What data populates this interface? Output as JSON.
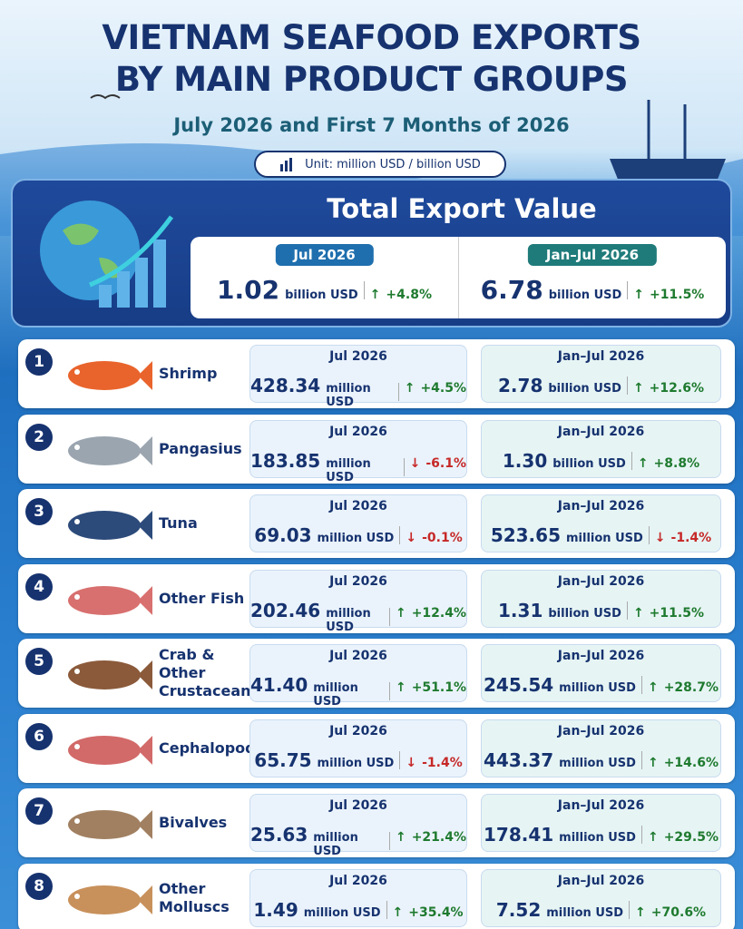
{
  "header": {
    "title_lines": [
      "VIETNAM SEAFOOD EXPORTS",
      "BY MAIN PRODUCT GROUPS"
    ],
    "subtitle": "July 2026 and First 7 Months of 2026",
    "unit": "Unit: million USD / billion USD"
  },
  "periods": [
    "Jul 2026",
    "Jan–Jul 2026"
  ],
  "total": {
    "title": "Total Export Value",
    "cells": [
      {
        "value": "1.02",
        "unit": "billion USD",
        "change": "+4.8%"
      },
      {
        "value": "6.78",
        "unit": "billion USD",
        "change": "+11.5%"
      }
    ]
  },
  "products": [
    {
      "rank": "1",
      "name": "Shrimp",
      "cells": [
        {
          "value": "428.34",
          "unit": "million USD",
          "change": "+4.5%"
        },
        {
          "value": "2.78",
          "unit": "billion USD",
          "change": "+12.6%"
        }
      ]
    },
    {
      "rank": "2",
      "name": "Pangasius",
      "cells": [
        {
          "value": "183.85",
          "unit": "million USD",
          "change": "-6.1%"
        },
        {
          "value": "1.30",
          "unit": "billion USD",
          "change": "+8.8%"
        }
      ]
    },
    {
      "rank": "3",
      "name": "Tuna",
      "cells": [
        {
          "value": "69.03",
          "unit": "million USD",
          "change": "-0.1%"
        },
        {
          "value": "523.65",
          "unit": "million USD",
          "change": "-1.4%"
        }
      ]
    },
    {
      "rank": "4",
      "name": "Other Fish",
      "cells": [
        {
          "value": "202.46",
          "unit": "million USD",
          "change": "+12.4%"
        },
        {
          "value": "1.31",
          "unit": "billion USD",
          "change": "+11.5%"
        }
      ]
    },
    {
      "rank": "5",
      "name": "Crab & Other Crustaceans",
      "cells": [
        {
          "value": "41.40",
          "unit": "million USD",
          "change": "+51.1%"
        },
        {
          "value": "245.54",
          "unit": "million USD",
          "change": "+28.7%"
        }
      ]
    },
    {
      "rank": "6",
      "name": "Cephalopods",
      "cells": [
        {
          "value": "65.75",
          "unit": "million USD",
          "change": "-1.4%"
        },
        {
          "value": "443.37",
          "unit": "million USD",
          "change": "+14.6%"
        }
      ]
    },
    {
      "rank": "7",
      "name": "Bivalves",
      "cells": [
        {
          "value": "25.63",
          "unit": "million USD",
          "change": "+21.4%"
        },
        {
          "value": "178.41",
          "unit": "million USD",
          "change": "+29.5%"
        }
      ]
    },
    {
      "rank": "8",
      "name": "Other Molluscs",
      "cells": [
        {
          "value": "1.49",
          "unit": "million USD",
          "change": "+35.4%"
        },
        {
          "value": "7.52",
          "unit": "million USD",
          "change": "+70.6%"
        }
      ]
    }
  ]
}
